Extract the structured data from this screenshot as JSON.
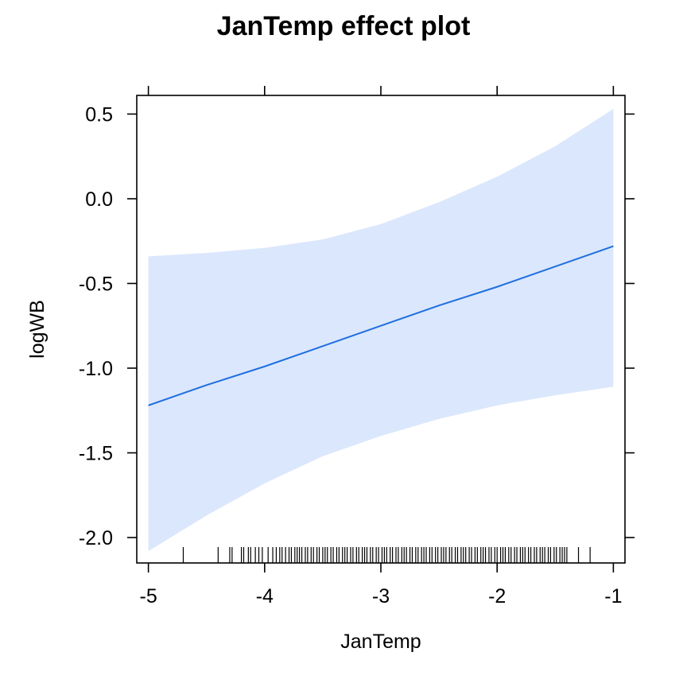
{
  "chart_data": {
    "type": "line",
    "title": "JanTemp effect plot",
    "xlabel": "JanTemp",
    "ylabel": "logWB",
    "xlim": [
      -5.1,
      -0.9
    ],
    "ylim": [
      -2.15,
      0.61
    ],
    "x_ticks": [
      -5,
      -4,
      -3,
      -2,
      -1
    ],
    "x_tick_labels": [
      "-5",
      "-4",
      "-3",
      "-2",
      "-1"
    ],
    "y_ticks": [
      -2.0,
      -1.5,
      -1.0,
      -0.5,
      0.0,
      0.5
    ],
    "y_tick_labels": [
      "-2.0",
      "-1.5",
      "-1.0",
      "-0.5",
      "0.0",
      "0.5"
    ],
    "colors": {
      "line": "#1f6fe0",
      "band": "#dbe7fc",
      "rug": "#000000"
    },
    "series": [
      {
        "kind": "fit",
        "x": [
          -5,
          -4.5,
          -4,
          -3.5,
          -3,
          -2.5,
          -2,
          -1.5,
          -1
        ],
        "y": [
          -1.22,
          -1.1,
          -0.99,
          -0.87,
          -0.75,
          -0.63,
          -0.52,
          -0.4,
          -0.28
        ]
      },
      {
        "kind": "confidence-band",
        "x": [
          -5,
          -4.5,
          -4,
          -3.5,
          -3,
          -2.5,
          -2,
          -1.5,
          -1
        ],
        "lower": [
          -2.08,
          -1.87,
          -1.68,
          -1.52,
          -1.4,
          -1.3,
          -1.22,
          -1.16,
          -1.11
        ],
        "upper": [
          -0.34,
          -0.32,
          -0.29,
          -0.24,
          -0.15,
          -0.02,
          0.13,
          0.31,
          0.53
        ]
      }
    ],
    "rug": [
      -4.7,
      -4.4,
      -4.3,
      -4.28,
      -4.2,
      -4.18,
      -4.14,
      -4.12,
      -4.08,
      -4.05,
      -4.02,
      -3.97,
      -3.93,
      -3.9,
      -3.87,
      -3.85,
      -3.82,
      -3.79,
      -3.77,
      -3.74,
      -3.72,
      -3.7,
      -3.68,
      -3.65,
      -3.63,
      -3.6,
      -3.58,
      -3.55,
      -3.53,
      -3.5,
      -3.48,
      -3.46,
      -3.43,
      -3.41,
      -3.38,
      -3.36,
      -3.33,
      -3.31,
      -3.29,
      -3.26,
      -3.24,
      -3.21,
      -3.19,
      -3.16,
      -3.14,
      -3.12,
      -3.09,
      -3.07,
      -3.04,
      -3.02,
      -2.99,
      -2.97,
      -2.95,
      -2.92,
      -2.9,
      -2.87,
      -2.85,
      -2.82,
      -2.8,
      -2.78,
      -2.75,
      -2.73,
      -2.7,
      -2.68,
      -2.65,
      -2.63,
      -2.61,
      -2.58,
      -2.56,
      -2.53,
      -2.51,
      -2.48,
      -2.46,
      -2.44,
      -2.41,
      -2.39,
      -2.36,
      -2.34,
      -2.31,
      -2.29,
      -2.27,
      -2.24,
      -2.22,
      -2.19,
      -2.17,
      -2.14,
      -2.12,
      -2.1,
      -2.07,
      -2.05,
      -2.02,
      -2.0,
      -1.97,
      -1.95,
      -1.93,
      -1.9,
      -1.88,
      -1.85,
      -1.83,
      -1.8,
      -1.78,
      -1.76,
      -1.73,
      -1.71,
      -1.68,
      -1.66,
      -1.63,
      -1.61,
      -1.59,
      -1.56,
      -1.54,
      -1.51,
      -1.49,
      -1.46,
      -1.44,
      -1.42,
      -1.4,
      -1.3,
      -1.2
    ]
  }
}
